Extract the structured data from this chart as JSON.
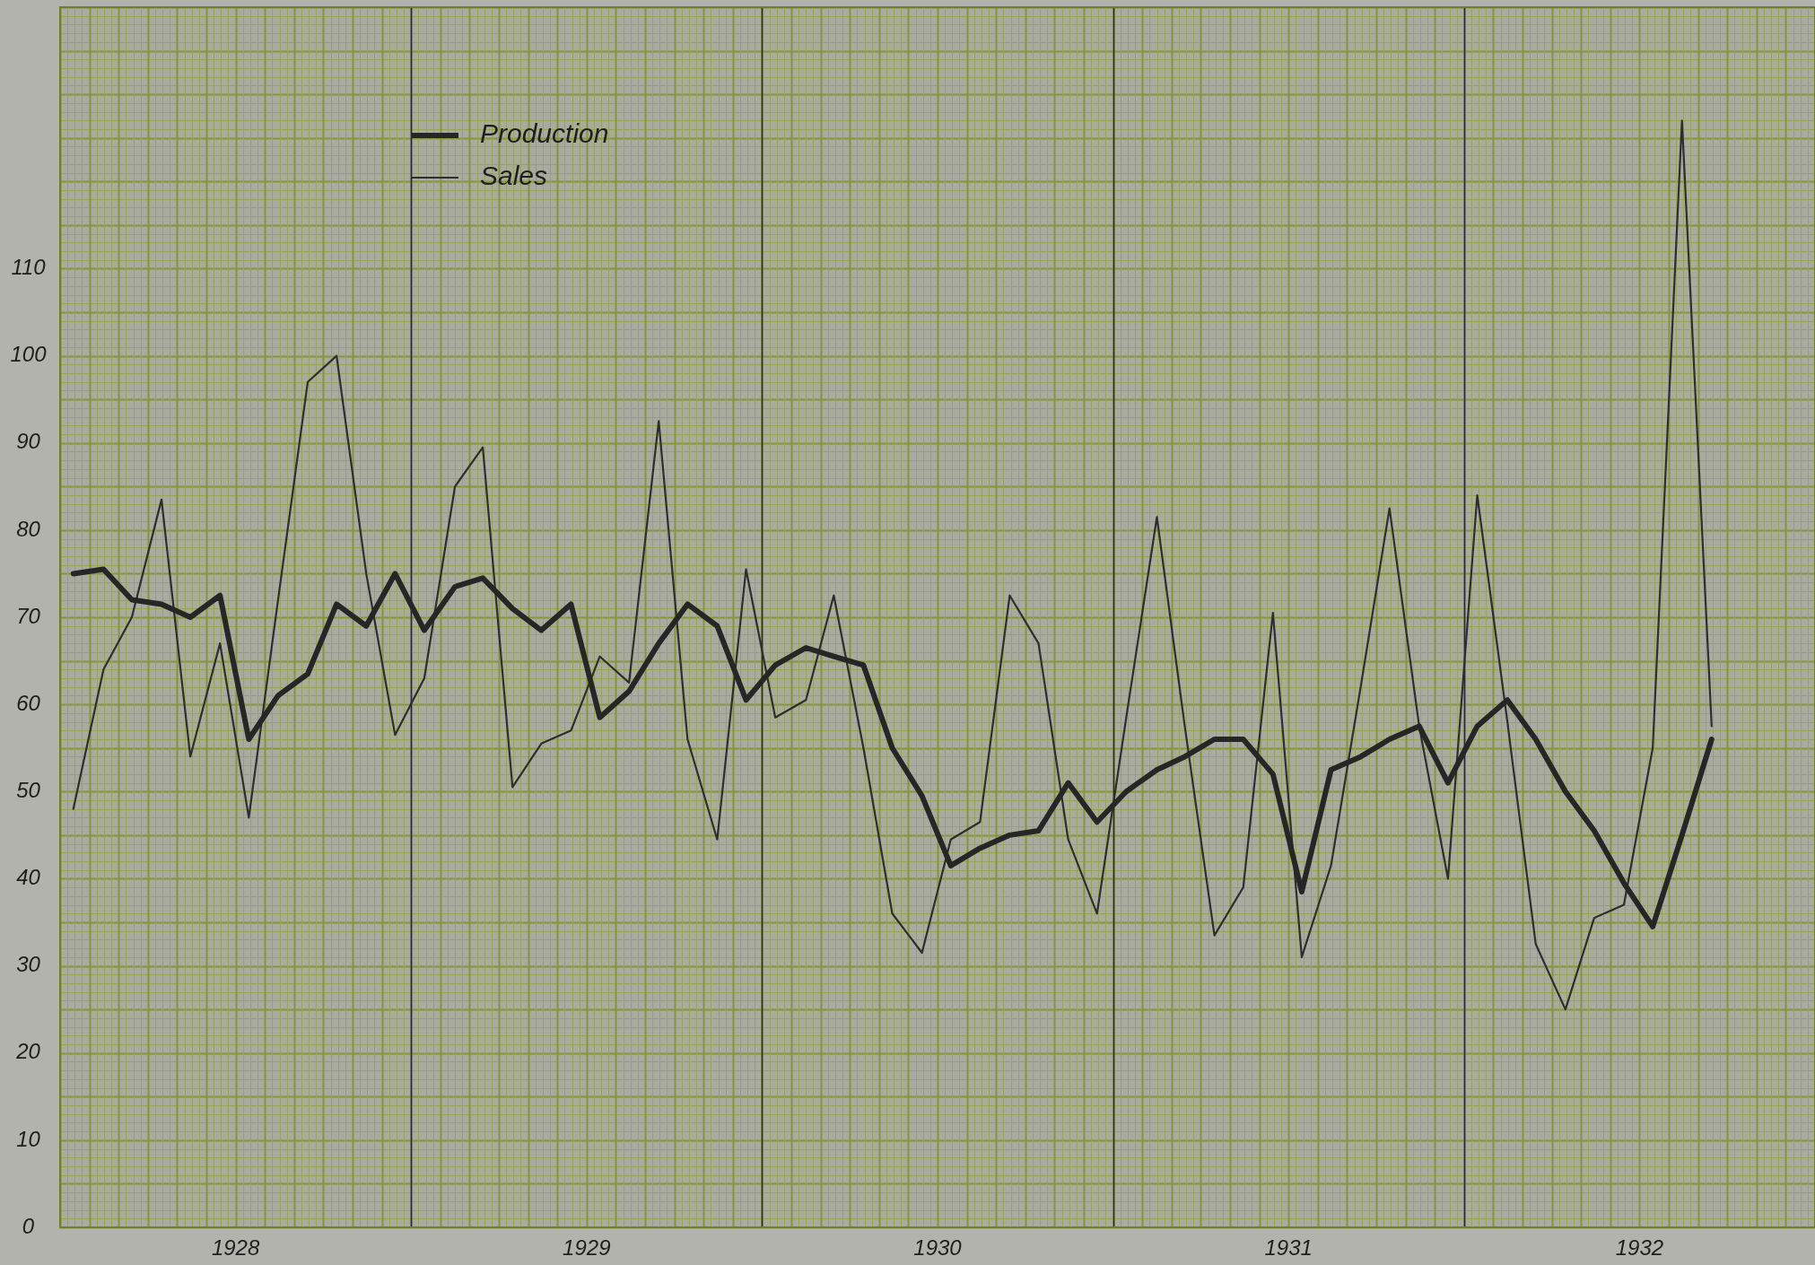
{
  "chart_data": {
    "type": "line",
    "x": [
      "1928-01-15",
      "1928-02-15",
      "1928-03-15",
      "1928-04-15",
      "1928-05-15",
      "1928-06-15",
      "1928-07-15",
      "1928-08-15",
      "1928-09-15",
      "1928-10-15",
      "1928-11-15",
      "1928-12-15",
      "1929-01-15",
      "1929-02-15",
      "1929-03-15",
      "1929-04-15",
      "1929-05-15",
      "1929-06-15",
      "1929-07-15",
      "1929-08-15",
      "1929-09-15",
      "1929-10-15",
      "1929-11-15",
      "1929-12-15",
      "1930-01-15",
      "1930-02-15",
      "1930-03-15",
      "1930-04-15",
      "1930-05-15",
      "1930-06-15",
      "1930-07-15",
      "1930-08-15",
      "1930-09-15",
      "1930-10-15",
      "1930-11-15",
      "1930-12-15",
      "1931-01-15",
      "1931-02-15",
      "1931-03-15",
      "1931-04-15",
      "1931-05-15",
      "1931-06-15",
      "1931-07-15",
      "1931-08-15",
      "1931-09-15",
      "1931-10-15",
      "1931-11-15",
      "1931-12-15",
      "1932-01-15",
      "1932-02-15",
      "1932-03-15",
      "1932-04-15",
      "1932-05-15",
      "1932-06-15",
      "1932-07-15",
      "1932-08-15",
      "1932-09-15"
    ],
    "series": [
      {
        "name": "Production",
        "color": "#262626",
        "values": [
          75,
          75.5,
          72,
          71.5,
          70,
          72.5,
          56,
          61,
          63.5,
          71.5,
          69,
          75,
          68.5,
          73.5,
          74.5,
          71,
          68.5,
          71.5,
          58.5,
          61.5,
          67,
          71.5,
          69,
          60.5,
          64.5,
          66.5,
          65.5,
          64.5,
          55,
          49.5,
          41.5,
          43.5,
          45,
          45.5,
          51,
          46.5,
          50,
          52.5,
          54,
          56,
          56,
          52,
          38.5,
          52.5,
          54,
          56,
          57.5,
          51,
          57.5,
          60.5,
          56,
          50,
          45.5,
          39.5,
          34.5,
          45,
          56
        ]
      },
      {
        "name": "Sales",
        "color": "#2e2e2e",
        "values": [
          48,
          64,
          70,
          83.5,
          54,
          67,
          47,
          72,
          97,
          100,
          75,
          56.5,
          63,
          85,
          89.5,
          50.5,
          55.5,
          57,
          65.5,
          62.5,
          92.5,
          56,
          44.5,
          75.5,
          58.5,
          60.5,
          72.5,
          55,
          36,
          31.5,
          44.5,
          46.5,
          72.5,
          67,
          44.5,
          36,
          58.5,
          81.5,
          57.5,
          33.5,
          39,
          70.5,
          31,
          41.5,
          62,
          82.5,
          57.5,
          40,
          84,
          58,
          32.5,
          25,
          35.5,
          37,
          55,
          127,
          57.5
        ]
      }
    ],
    "xlim": [
      "1928-01",
      "1933-01"
    ],
    "xticks": [
      {
        "value": "1928-07",
        "label": "1928"
      },
      {
        "value": "1929",
        "label": null
      },
      {
        "value": "1929-07",
        "label": "1929"
      },
      {
        "value": "1930",
        "label": null
      },
      {
        "value": "1930-07",
        "label": "1930"
      },
      {
        "value": "1931",
        "label": null
      },
      {
        "value": "1931-07",
        "label": "1931"
      },
      {
        "value": "1932",
        "label": null
      },
      {
        "value": "1932-07",
        "label": "1932"
      }
    ],
    "ylim": [
      0,
      140
    ],
    "yticks": [
      0,
      10,
      20,
      30,
      40,
      50,
      60,
      70,
      80,
      90,
      100,
      110
    ],
    "grid": true,
    "legend": "top left",
    "marker": "none"
  }
}
